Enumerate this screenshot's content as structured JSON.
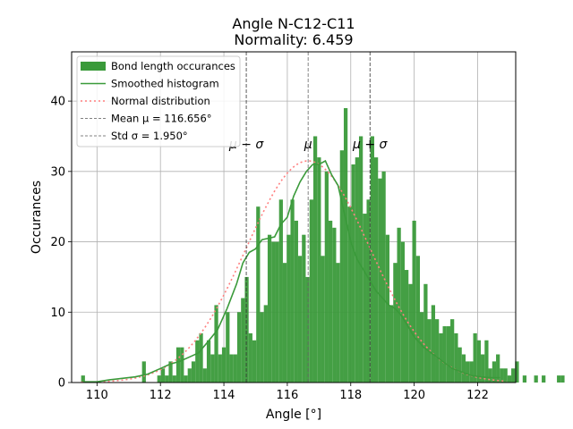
{
  "chart_data": {
    "type": "bar",
    "title": "Angle N-C12-C11",
    "subtitle": "Normality: 6.459",
    "xlabel": "Angle [°]",
    "ylabel": "Occurances",
    "xlim": [
      109.2,
      123.2
    ],
    "ylim": [
      0,
      47
    ],
    "xticks": [
      110,
      112,
      114,
      116,
      118,
      120,
      122
    ],
    "yticks": [
      0,
      10,
      20,
      30,
      40
    ],
    "grid": true,
    "legend_position": "upper-left",
    "legend": [
      {
        "label": "Bond length occurances",
        "kind": "patch",
        "color": "#3a9a3a"
      },
      {
        "label": "Smoothed histogram",
        "kind": "line",
        "color": "#3a9a3a"
      },
      {
        "label": "Normal distribution",
        "kind": "dotted",
        "color": "#ff7f7f"
      },
      {
        "label": "Mean μ = 116.656°",
        "kind": "dashed",
        "color": "#808080"
      },
      {
        "label": "Std σ = 1.950°",
        "kind": "dashed",
        "color": "#808080"
      }
    ],
    "annotations": [
      {
        "text": "μ − σ",
        "x": 114.706
      },
      {
        "text": "μ",
        "x": 116.656
      },
      {
        "text": "μ + σ",
        "x": 118.606
      }
    ],
    "mean": 116.656,
    "std": 1.95,
    "bin_width": 0.12,
    "histogram": {
      "x_start": 109.5,
      "counts": [
        1,
        0,
        0,
        0,
        0,
        0,
        0,
        0,
        0,
        0,
        0,
        0,
        0,
        0,
        0,
        0,
        3,
        0,
        0,
        0,
        1,
        2,
        1,
        3,
        1,
        5,
        5,
        1,
        2,
        3,
        6,
        7,
        2,
        6,
        4,
        11,
        4,
        5,
        10,
        4,
        4,
        10,
        12,
        15,
        7,
        6,
        25,
        10,
        11,
        21,
        20,
        20,
        26,
        17,
        21,
        26,
        23,
        18,
        21,
        15,
        26,
        35,
        32,
        18,
        30,
        23,
        22,
        17,
        33,
        39,
        25,
        31,
        32,
        35,
        24,
        26,
        35,
        32,
        29,
        30,
        21,
        11,
        17,
        22,
        20,
        16,
        14,
        23,
        18,
        10,
        14,
        9,
        11,
        9,
        7,
        8,
        8,
        9,
        7,
        5,
        4,
        3,
        3,
        7,
        6,
        4,
        6,
        2,
        3,
        4,
        2,
        2,
        1,
        2,
        3,
        0,
        1,
        0,
        0,
        1,
        0,
        1,
        0,
        0,
        0,
        1,
        1
      ],
      "color": "#3a9a3a"
    },
    "series": [
      {
        "name": "Smoothed histogram",
        "color": "#3a9a3a",
        "x": [
          109.6,
          110.0,
          110.4,
          110.8,
          111.2,
          111.6,
          112.0,
          112.3,
          112.6,
          112.9,
          113.2,
          113.5,
          113.8,
          114.1,
          114.4,
          114.6,
          114.8,
          115.0,
          115.2,
          115.4,
          115.6,
          115.8,
          116.0,
          116.2,
          116.4,
          116.6,
          116.8,
          117.0,
          117.2,
          117.4,
          117.6,
          117.8,
          118.0,
          118.2,
          118.4,
          118.6,
          118.8,
          119.0,
          119.2,
          119.4,
          119.6,
          119.8,
          120.0,
          120.3,
          120.6,
          120.9,
          121.2,
          121.5,
          121.8,
          122.1,
          122.4,
          122.7
        ],
        "y": [
          0.1,
          0.1,
          0.4,
          0.6,
          0.8,
          1.2,
          2.0,
          2.6,
          3.0,
          3.6,
          4.2,
          5.8,
          7.5,
          10.5,
          14.0,
          17.0,
          18.5,
          19.0,
          20.3,
          20.5,
          20.7,
          22.5,
          23.5,
          26.5,
          28.5,
          30.0,
          31.0,
          31.0,
          31.5,
          29.5,
          28.0,
          24.0,
          20.0,
          17.5,
          16.0,
          14.5,
          13.0,
          12.0,
          11.0,
          10.5,
          9.5,
          8.0,
          6.5,
          5.0,
          4.0,
          3.0,
          2.0,
          1.5,
          1.0,
          0.8,
          0.7,
          0.7
        ]
      },
      {
        "name": "Normal distribution",
        "color": "#ff7f7f",
        "peak": 31.5
      }
    ]
  }
}
